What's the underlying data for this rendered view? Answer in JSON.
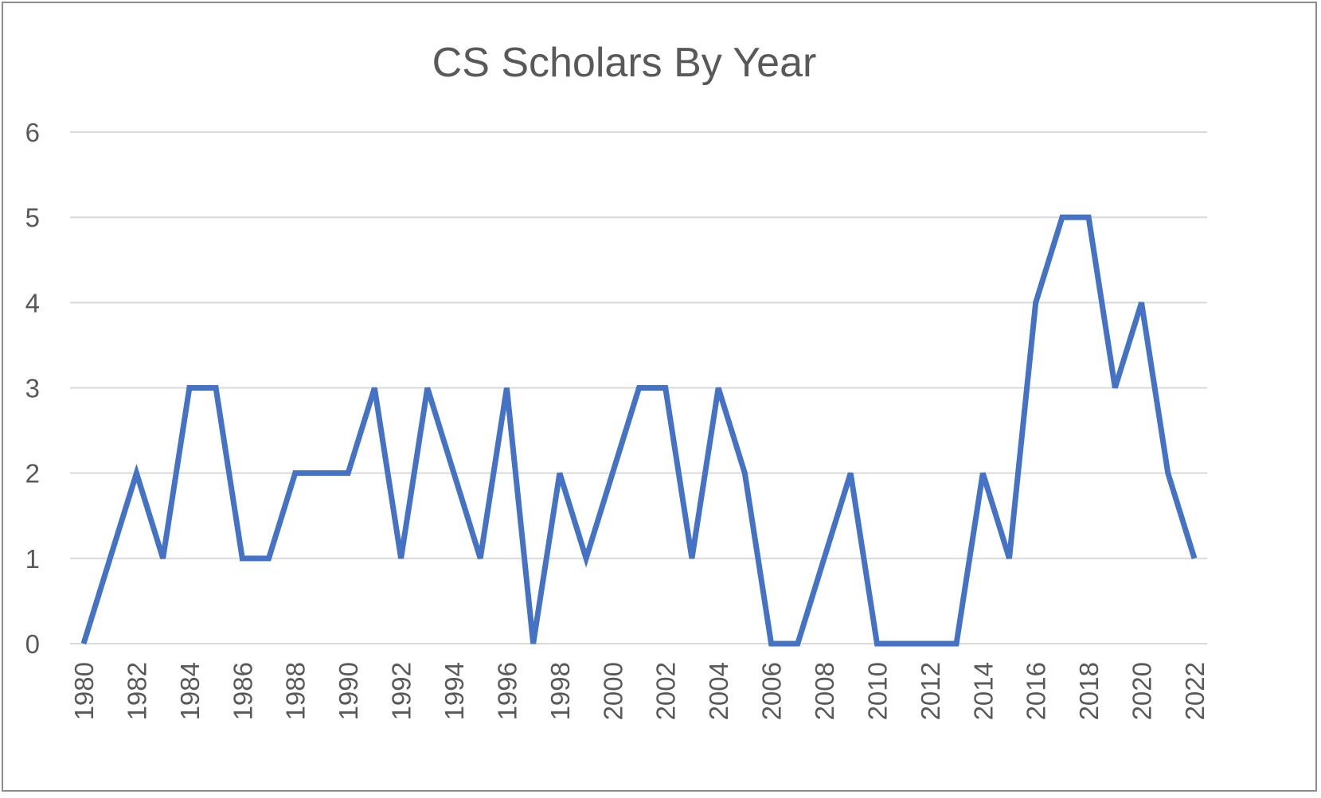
{
  "chart_data": {
    "type": "line",
    "title": "CS Scholars By Year",
    "xlabel": "",
    "ylabel": "",
    "x": [
      1980,
      1981,
      1982,
      1983,
      1984,
      1985,
      1986,
      1987,
      1988,
      1989,
      1990,
      1991,
      1992,
      1993,
      1994,
      1995,
      1996,
      1997,
      1998,
      1999,
      2000,
      2001,
      2002,
      2003,
      2004,
      2005,
      2006,
      2007,
      2008,
      2009,
      2010,
      2011,
      2012,
      2013,
      2014,
      2015,
      2016,
      2017,
      2018,
      2019,
      2020,
      2021,
      2022
    ],
    "series": [
      {
        "values": [
          0,
          1,
          2,
          1,
          3,
          3,
          1,
          1,
          2,
          2,
          2,
          3,
          1,
          3,
          2,
          1,
          3,
          0,
          2,
          1,
          2,
          3,
          3,
          1,
          3,
          2,
          0,
          0,
          1,
          2,
          0,
          0,
          0,
          0,
          2,
          1,
          4,
          5,
          5,
          3,
          4,
          2,
          1
        ],
        "color": "#4472c4"
      }
    ],
    "x_tick_labels": [
      "1980",
      "1982",
      "1984",
      "1986",
      "1988",
      "1990",
      "1992",
      "1994",
      "1996",
      "1998",
      "2000",
      "2002",
      "2004",
      "2006",
      "2008",
      "2010",
      "2012",
      "2014",
      "2016",
      "2018",
      "2020",
      "2022"
    ],
    "y_tick_labels": [
      "0",
      "1",
      "2",
      "3",
      "4",
      "5",
      "6"
    ],
    "ylim": [
      0,
      6
    ],
    "grid": "horizontal",
    "legend": "none",
    "colors": {
      "line": "#4472c4",
      "grid": "#d9d9d9",
      "text": "#595959",
      "border": "#8c8c8c"
    }
  }
}
